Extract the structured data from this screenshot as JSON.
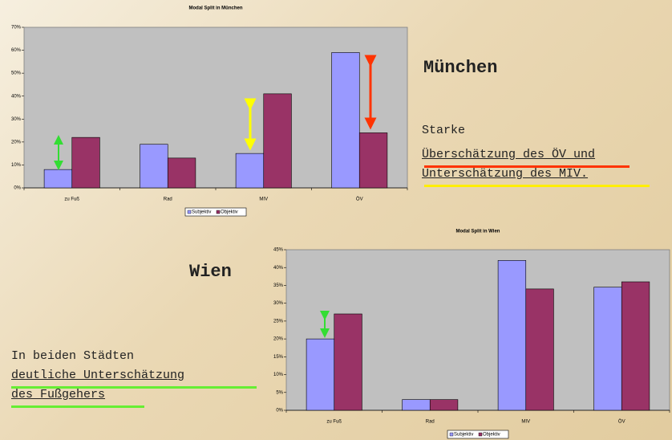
{
  "chart_data": [
    {
      "type": "bar",
      "title": "Modal Split in München",
      "categories": [
        "zu Fuß",
        "Rad",
        "MIV",
        "ÖV"
      ],
      "series": [
        {
          "name": "Subjektiv",
          "color": "#9999ff",
          "values": [
            8,
            19,
            15,
            59
          ]
        },
        {
          "name": "Objektiv",
          "color": "#993366",
          "values": [
            22,
            13,
            41,
            24
          ]
        }
      ],
      "ylim": [
        0,
        70
      ],
      "yticks": [
        {
          "value": 0,
          "label": "0%"
        },
        {
          "value": 10,
          "label": "10%"
        },
        {
          "value": 20,
          "label": "20%"
        },
        {
          "value": 30,
          "label": "30%"
        },
        {
          "value": 40,
          "label": "40%"
        },
        {
          "value": 50,
          "label": "50%"
        },
        {
          "value": 60,
          "label": "60%"
        },
        {
          "value": 70,
          "label": "70%"
        }
      ],
      "legend": "bottom"
    },
    {
      "type": "bar",
      "title": "Modal Split in Wien",
      "categories": [
        "zu Fuß",
        "Rad",
        "MIV",
        "ÖV"
      ],
      "series": [
        {
          "name": "Subjektiv",
          "color": "#9999ff",
          "values": [
            20,
            3,
            42,
            34.5
          ]
        },
        {
          "name": "Objektiv",
          "color": "#993366",
          "values": [
            27,
            3,
            34,
            36
          ]
        }
      ],
      "ylim": [
        0,
        45
      ],
      "yticks": [
        {
          "value": 0,
          "label": "0%"
        },
        {
          "value": 5,
          "label": "5%"
        },
        {
          "value": 10,
          "label": "10%"
        },
        {
          "value": 15,
          "label": "15%"
        },
        {
          "value": 20,
          "label": "20%"
        },
        {
          "value": 25,
          "label": "25%"
        },
        {
          "value": 30,
          "label": "30%"
        },
        {
          "value": 35,
          "label": "35%"
        },
        {
          "value": 40,
          "label": "40%"
        },
        {
          "value": 45,
          "label": "45%"
        }
      ],
      "legend": "bottom"
    }
  ],
  "slide": {
    "muenchen": {
      "heading": "München",
      "lines": [
        "Starke",
        "Überschätzung des ÖV und",
        "Unterschätzung des MIV."
      ]
    },
    "wien": {
      "heading": "Wien",
      "lines": [
        "In beiden Städten",
        "deutliche Unterschätzung",
        "des Fußgehers"
      ]
    }
  }
}
